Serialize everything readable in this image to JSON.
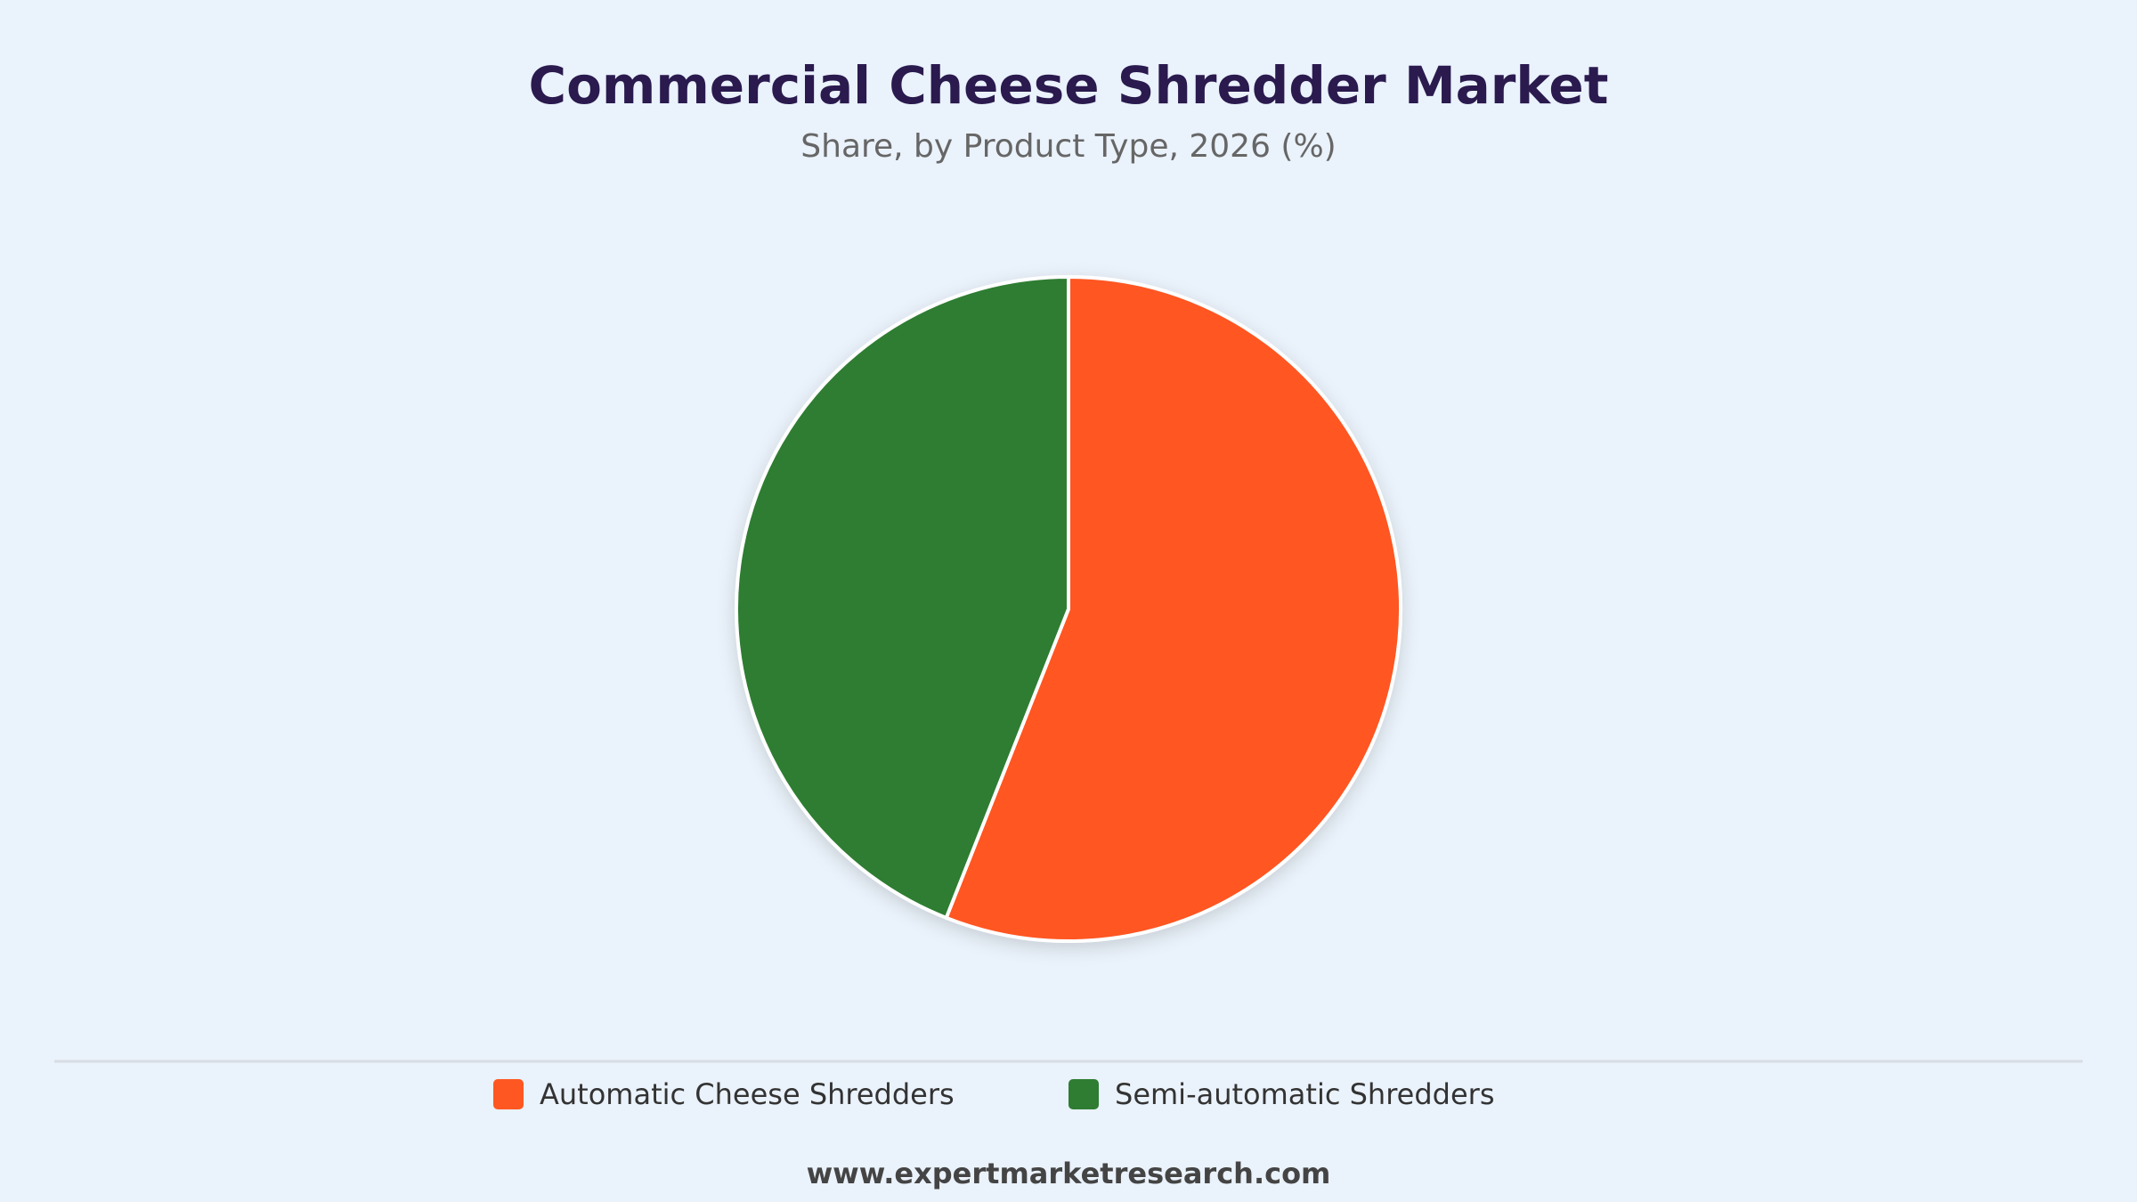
{
  "chart_data": {
    "type": "pie",
    "title": "Commercial Cheese Shredder Market",
    "subtitle": "Share, by Product Type, 2026 (%)",
    "categories": [
      "Automatic Cheese Shredders",
      "Semi-automatic Shredders"
    ],
    "values": [
      56,
      44
    ],
    "colors": [
      "#ff5722",
      "#2e7d32"
    ],
    "legend": "bottom",
    "source": "www.expertmarketresearch.com"
  }
}
